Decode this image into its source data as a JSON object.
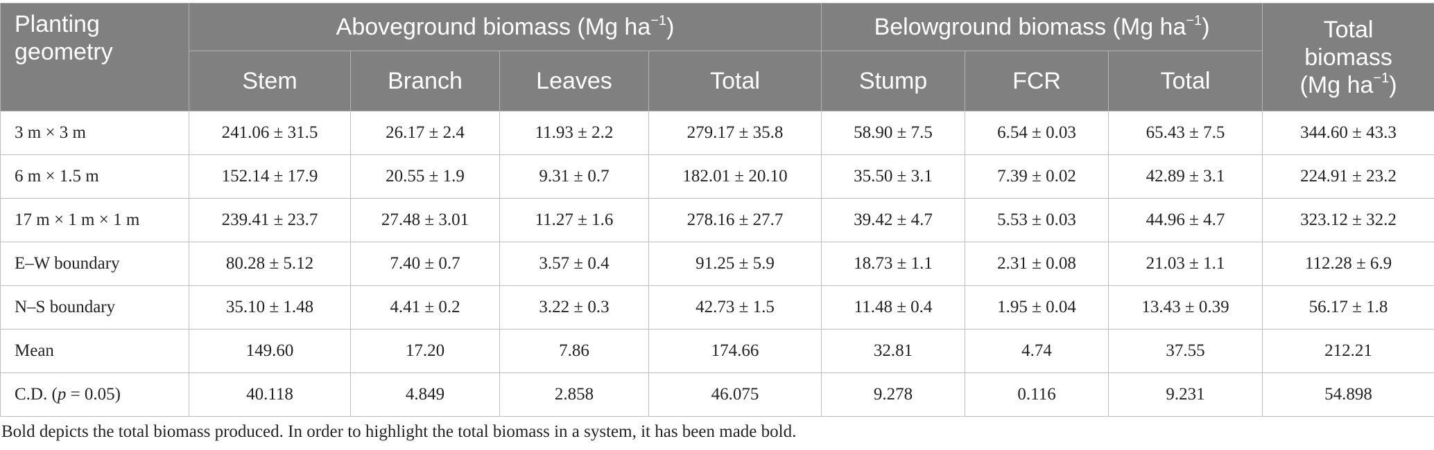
{
  "table": {
    "headers": {
      "planting_geometry": "Planting geometry",
      "aboveground": "Aboveground biomass (Mg ha",
      "aboveground_sup": "−1",
      "aboveground_close": ")",
      "belowground": "Belowground biomass (Mg ha",
      "belowground_sup": "−1",
      "belowground_close": ")",
      "total_line1": "Total",
      "total_line2": "biomass",
      "total_line3": "(Mg ha",
      "total_sup": "−1",
      "total_close": ")",
      "sub": [
        "Stem",
        "Branch",
        "Leaves",
        "Total",
        "Stump",
        "FCR",
        "Total"
      ]
    },
    "rows": [
      {
        "label": "3 m × 3 m",
        "cells": [
          "241.06 ± 31.5",
          "26.17 ± 2.4",
          "11.93 ± 2.2",
          "279.17 ± 35.8",
          "58.90 ± 7.5",
          "6.54 ± 0.03",
          "65.43 ± 7.5",
          "344.60 ± 43.3"
        ]
      },
      {
        "label": "6 m × 1.5 m",
        "cells": [
          "152.14 ± 17.9",
          "20.55 ± 1.9",
          "9.31 ± 0.7",
          "182.01 ± 20.10",
          "35.50 ± 3.1",
          "7.39 ± 0.02",
          "42.89 ± 3.1",
          "224.91 ± 23.2"
        ]
      },
      {
        "label": "17 m × 1 m × 1 m",
        "cells": [
          "239.41 ± 23.7",
          "27.48 ± 3.01",
          "11.27 ± 1.6",
          "278.16 ± 27.7",
          "39.42 ± 4.7",
          "5.53 ± 0.03",
          "44.96 ± 4.7",
          "323.12 ± 32.2"
        ]
      },
      {
        "label": "E–W boundary",
        "cells": [
          "80.28 ± 5.12",
          "7.40 ± 0.7",
          "3.57 ± 0.4",
          "91.25 ± 5.9",
          "18.73 ± 1.1",
          "2.31 ± 0.08",
          "21.03 ± 1.1",
          "112.28 ± 6.9"
        ]
      },
      {
        "label": "N–S boundary",
        "cells": [
          "35.10 ± 1.48",
          "4.41 ± 0.2",
          "3.22 ± 0.3",
          "42.73 ± 1.5",
          "11.48 ± 0.4",
          "1.95 ± 0.04",
          "13.43 ± 0.39",
          "56.17 ± 1.8"
        ]
      },
      {
        "label": "Mean",
        "cells": [
          "149.60",
          "17.20",
          "7.86",
          "174.66",
          "32.81",
          "4.74",
          "37.55",
          "212.21"
        ]
      },
      {
        "label": "C.D. (p = 0.05)",
        "cells": [
          "40.118",
          "4.849",
          "2.858",
          "46.075",
          "9.278",
          "0.116",
          "9.231",
          "54.898"
        ]
      }
    ]
  },
  "footnote": "Bold depicts the total biomass produced. In order to highlight the total biomass in a system, it has been made bold."
}
